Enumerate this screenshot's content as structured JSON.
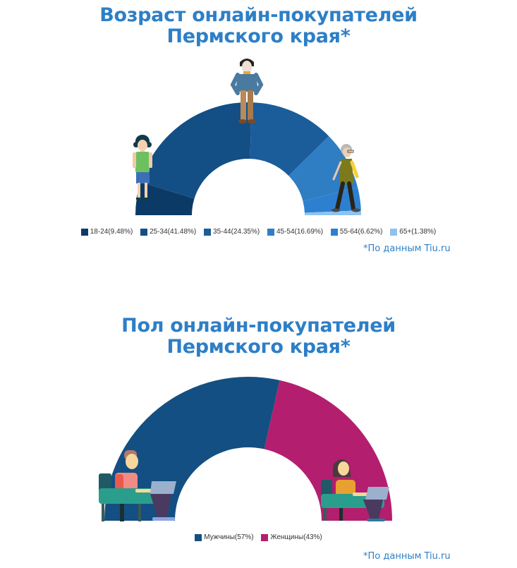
{
  "charts": {
    "age": {
      "title_line1": "Возраст онлайн-покупателей",
      "title_line2": "Пермского края*",
      "source": "*По данным Tiu.ru",
      "legend": [
        {
          "label": "18-24(9.48%)",
          "color": "#0b3a66"
        },
        {
          "label": "25-34(41.48%)",
          "color": "#134f85"
        },
        {
          "label": "35-44(24.35%)",
          "color": "#1b5c9a"
        },
        {
          "label": "45-54(16.69%)",
          "color": "#2f7ec4"
        },
        {
          "label": "55-64(6.62%)",
          "color": "#2d80cf"
        },
        {
          "label": "65+(1.38%)",
          "color": "#8ec3f0"
        }
      ]
    },
    "gender": {
      "title_line1": "Пол онлайн-покупателей",
      "title_line2": "Пермского края*",
      "source": "*По данным Tiu.ru",
      "legend": [
        {
          "label": "Мужчины(57%)",
          "color": "#134f82"
        },
        {
          "label": "Женщины(43%)",
          "color": "#b41e6e"
        }
      ]
    }
  },
  "chart_data": [
    {
      "type": "pie",
      "subtype": "semi-donut",
      "title": "Возраст онлайн-покупателей Пермского края*",
      "categories": [
        "18-24",
        "25-34",
        "35-44",
        "45-54",
        "55-64",
        "65+"
      ],
      "values": [
        9.48,
        41.48,
        24.35,
        16.69,
        6.62,
        1.38
      ],
      "unit": "%",
      "colors": [
        "#0b3a66",
        "#134f85",
        "#1b5c9a",
        "#2f7ec4",
        "#2d80cf",
        "#8ec3f0"
      ],
      "legend_position": "bottom",
      "annotation": "*По данным Tiu.ru"
    },
    {
      "type": "pie",
      "subtype": "semi-donut",
      "title": "Пол онлайн-покупателей Пермского края*",
      "categories": [
        "Мужчины",
        "Женщины"
      ],
      "values": [
        57,
        43
      ],
      "unit": "%",
      "colors": [
        "#134f82",
        "#b41e6e"
      ],
      "legend_position": "bottom",
      "annotation": "*По данным Tiu.ru"
    }
  ]
}
